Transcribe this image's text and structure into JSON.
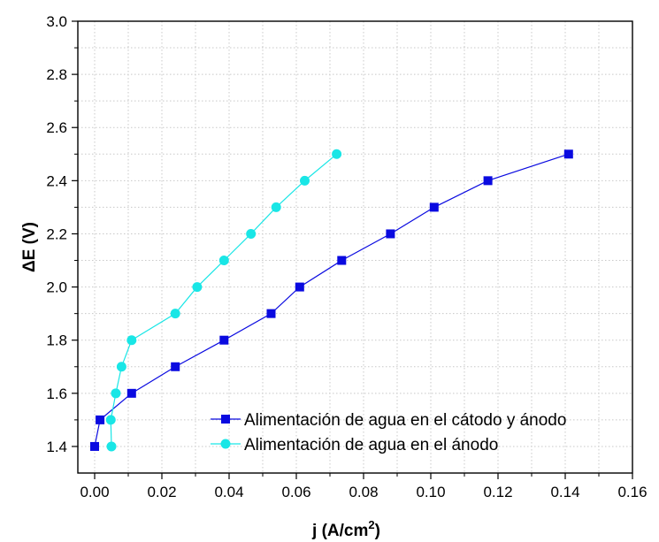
{
  "chart_data": {
    "type": "line",
    "xlabel": "j (A/cm",
    "xlabel_sup": "2",
    "xlabel_tail": ")",
    "ylabel": "ΔE (V)",
    "xlim": [
      -0.005,
      0.16
    ],
    "ylim": [
      1.3,
      3.0
    ],
    "x_ticks": [
      0.0,
      0.02,
      0.04,
      0.06,
      0.08,
      0.1,
      0.12,
      0.14,
      0.16
    ],
    "x_tick_labels": [
      "0.00",
      "0.02",
      "0.04",
      "0.06",
      "0.08",
      "0.10",
      "0.12",
      "0.14",
      "0.16"
    ],
    "y_ticks": [
      1.4,
      1.6,
      1.8,
      2.0,
      2.2,
      2.4,
      2.6,
      2.8,
      3.0
    ],
    "y_tick_labels": [
      "1.4",
      "1.6",
      "1.8",
      "2.0",
      "2.2",
      "2.4",
      "2.6",
      "2.8",
      "3.0"
    ],
    "grid": true,
    "legend_position": "bottom-right",
    "series": [
      {
        "name": "Alimentación de agua en el cátodo y ánodo",
        "color": "#0a0ae0",
        "marker": "square",
        "x": [
          0.0,
          0.0016,
          0.011,
          0.024,
          0.0385,
          0.0525,
          0.061,
          0.0735,
          0.088,
          0.101,
          0.117,
          0.141
        ],
        "y": [
          1.4,
          1.5,
          1.6,
          1.7,
          1.8,
          1.9,
          2.0,
          2.1,
          2.2,
          2.3,
          2.4,
          2.5
        ]
      },
      {
        "name": "Alimentación de agua en el ánodo",
        "color": "#19e6e6",
        "marker": "circle",
        "x": [
          0.005,
          0.0048,
          0.0063,
          0.008,
          0.011,
          0.024,
          0.0305,
          0.0385,
          0.0465,
          0.054,
          0.0625,
          0.072
        ],
        "y": [
          1.4,
          1.5,
          1.6,
          1.7,
          1.8,
          1.9,
          2.0,
          2.1,
          2.2,
          2.3,
          2.4,
          2.5
        ]
      }
    ]
  }
}
